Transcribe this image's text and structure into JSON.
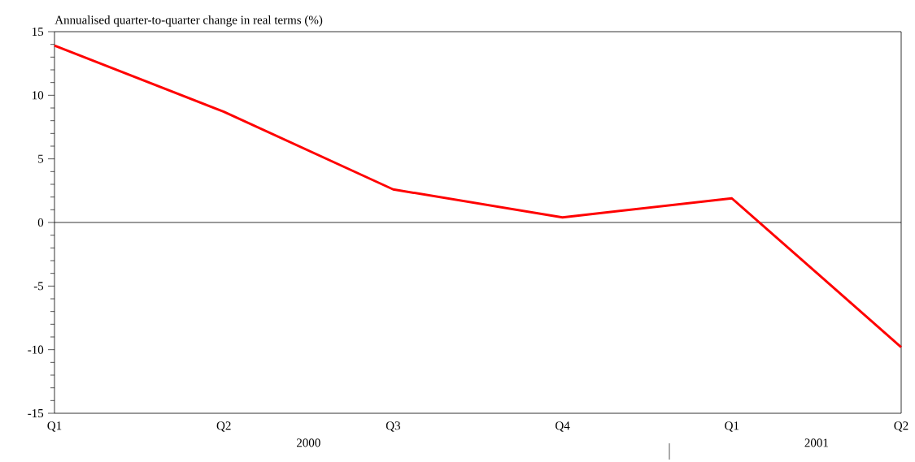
{
  "chart_data": {
    "type": "line",
    "ylabel": "Annualised quarter-to-quarter change in real terms (%)",
    "categories": [
      "Q1",
      "Q2",
      "Q3",
      "Q4",
      "Q1",
      "Q2"
    ],
    "series": [
      {
        "color": "#ff0000",
        "values": [
          13.9,
          8.7,
          2.6,
          0.4,
          1.9,
          -9.8
        ]
      }
    ],
    "ylim": [
      -15,
      15
    ],
    "yticks": [
      -15,
      -10,
      -5,
      0,
      5,
      10,
      15
    ],
    "ref_lines": [
      {
        "axis": "y",
        "value": 0,
        "color": "#000000"
      }
    ],
    "annotations": [
      "2000",
      "2001"
    ],
    "grid": false,
    "marker": "none",
    "line_style": "solid"
  }
}
